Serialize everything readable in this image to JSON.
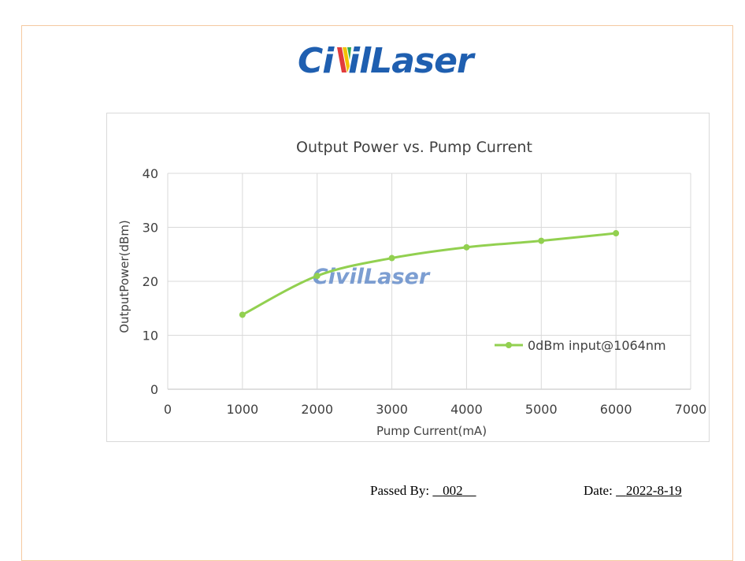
{
  "brand": {
    "logo_text_left": "Ci",
    "logo_text_right": "ilLaser",
    "logo_full": "CivilLaser",
    "logo_color": "#1f5fb0"
  },
  "chart_data": {
    "type": "line",
    "title": "Output Power vs. Pump Current",
    "xlabel": "Pump Current(mA)",
    "ylabel": "OutputPower(dBm)",
    "xlim": [
      0,
      7000
    ],
    "ylim": [
      0,
      40
    ],
    "xticks": [
      0,
      1000,
      2000,
      3000,
      4000,
      5000,
      6000,
      7000
    ],
    "yticks": [
      0,
      10,
      20,
      30,
      40
    ],
    "grid": true,
    "legend_position": "right",
    "series": [
      {
        "name": "0dBm input@1064nm",
        "color": "#92d050",
        "x": [
          1000,
          2000,
          3000,
          4000,
          5000,
          6000
        ],
        "y": [
          13.8,
          21.0,
          24.3,
          26.3,
          27.5,
          28.9
        ]
      }
    ],
    "watermark": "CivilLaser"
  },
  "footer": {
    "passed_by_label": "Passed By:",
    "passed_by_value": "002",
    "date_label": "Date:",
    "date_value": "2022-8-19"
  }
}
